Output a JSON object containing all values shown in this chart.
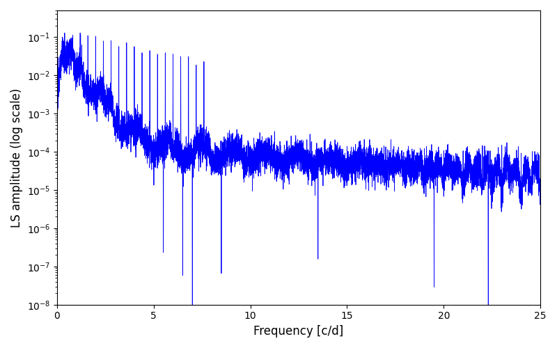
{
  "title": "",
  "xlabel": "Frequency [c/d]",
  "ylabel": "LS amplitude (log scale)",
  "xlim": [
    0,
    25
  ],
  "ylim_low": 1e-08,
  "ylim_high": 0.5,
  "line_color": "#0000ff",
  "line_width": 0.6,
  "yscale": "log",
  "figsize": [
    8.0,
    5.0
  ],
  "dpi": 100,
  "background_color": "#ffffff",
  "seed": 12345,
  "n_points": 8000,
  "freq_max": 25.0
}
